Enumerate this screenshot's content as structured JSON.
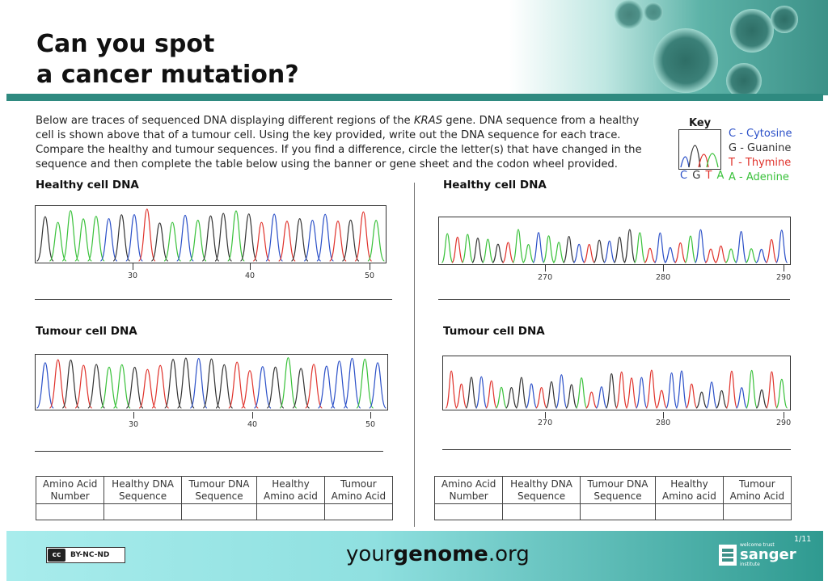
{
  "title": {
    "line1": "Can you spot",
    "line2": "a cancer mutation?"
  },
  "intro": {
    "p1": "Below are  traces of  sequenced DNA displaying different regions of the ",
    "gene": "KRAS",
    "p2": " gene. DNA sequence from a healthy cell is shown above that of a tumour cell. Using the key provided, write out the DNA sequence for each trace. Compare the healthy and tumour sequences. If you find a difference, circle the letter(s) that have changed in the sequence and then complete the table below using the banner or gene sheet and the codon wheel provided."
  },
  "key": {
    "title": "Key",
    "letters": [
      "C",
      "G",
      "T",
      "A"
    ],
    "items": [
      "C - Cytosine",
      "G - Guanine",
      "T - Thymine",
      "A - Adenine"
    ],
    "colors": {
      "C": "#2b50c8",
      "G": "#333333",
      "T": "#e0322b",
      "A": "#39c13a"
    }
  },
  "panels": [
    {
      "healthy_label": "Healthy cell DNA",
      "tumour_label": "Tumour cell DNA",
      "ticks": [
        "30",
        "40",
        "50"
      ]
    },
    {
      "healthy_label": "Healthy cell DNA",
      "tumour_label": "Tumour cell DNA",
      "ticks": [
        "270",
        "280",
        "290"
      ]
    }
  ],
  "table": {
    "headers": [
      [
        "Amino Acid",
        "Number"
      ],
      [
        "Healthy  DNA",
        "Sequence"
      ],
      [
        "Tumour DNA",
        "Sequence"
      ],
      [
        "Healthy",
        "Amino acid"
      ],
      [
        "Tumour",
        "Amino Acid"
      ]
    ]
  },
  "footer": {
    "license": "BY-NC-ND",
    "cc": "cc",
    "brand_pre": "your",
    "brand_bold": "genome",
    "brand_post": ".org",
    "page": "1/11",
    "sanger_small": "welcome trust",
    "sanger": "sanger",
    "sanger_sub": "institute"
  }
}
